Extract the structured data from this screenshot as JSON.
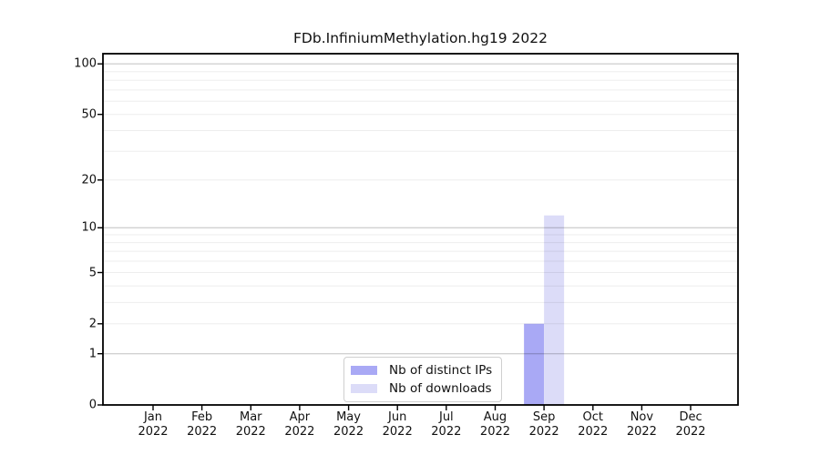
{
  "chart_data": {
    "type": "bar",
    "title": "FDb.InfiniumMethylation.hg19 2022",
    "x_categories_month": [
      "Jan",
      "Feb",
      "Mar",
      "Apr",
      "May",
      "Jun",
      "Jul",
      "Aug",
      "Sep",
      "Oct",
      "Nov",
      "Dec"
    ],
    "x_year_label": "2022",
    "series": [
      {
        "name": "Nb of distinct IPs",
        "color": "#a9a9f5",
        "values": [
          0,
          0,
          0,
          0,
          0,
          0,
          0,
          0,
          2,
          0,
          0,
          0
        ]
      },
      {
        "name": "Nb of downloads",
        "color": "#dcdcf8",
        "values": [
          0,
          0,
          0,
          0,
          0,
          0,
          0,
          0,
          12,
          0,
          0,
          0
        ]
      }
    ],
    "y_scale": "log1p",
    "ylim": [
      0,
      115
    ],
    "y_tick_labels": [
      0,
      1,
      2,
      5,
      10,
      20,
      50,
      100
    ],
    "y_major_gridlines": [
      1,
      10,
      100
    ],
    "y_minor_gridlines": [
      2,
      3,
      4,
      5,
      6,
      7,
      8,
      9,
      20,
      30,
      40,
      50,
      60,
      70,
      80,
      90
    ],
    "grid": "horizontal",
    "legend_position": "bottom-center"
  },
  "colors": {
    "axis": "#000000",
    "major_grid": "rgba(0,0,0,0.18)",
    "minor_grid": "rgba(0,0,0,0.07)",
    "background": "#ffffff"
  }
}
